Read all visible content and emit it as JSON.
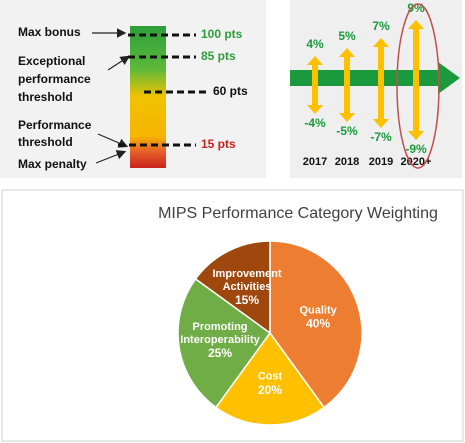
{
  "scoring_scale": {
    "labels": [
      [
        "Max bonus"
      ],
      [
        "Exceptional",
        "performance",
        "threshold"
      ],
      [
        "Performance",
        "threshold"
      ],
      [
        "Max penalty"
      ]
    ],
    "levels": [
      "100 pts",
      "85 pts",
      "60 pts",
      "15 pts"
    ]
  },
  "payment_adjustment": {
    "years": [
      "2017",
      "2018",
      "2019",
      "2020+"
    ],
    "bonus": [
      "4%",
      "5%",
      "7%",
      "9%"
    ],
    "penalty": [
      "-4%",
      "-5%",
      "-7%",
      "-9%"
    ]
  },
  "chart_data": {
    "type": "pie",
    "title": "MIPS Performance Category Weighting",
    "categories": [
      "Quality",
      "Cost",
      "Promoting Interoperability",
      "Improvement Activities"
    ],
    "values": [
      40,
      20,
      25,
      15
    ],
    "value_labels": [
      "40%",
      "20%",
      "25%",
      "15%"
    ],
    "colors": [
      "#ed7d31",
      "#ffc000",
      "#70ad47",
      "#9e480e"
    ]
  }
}
